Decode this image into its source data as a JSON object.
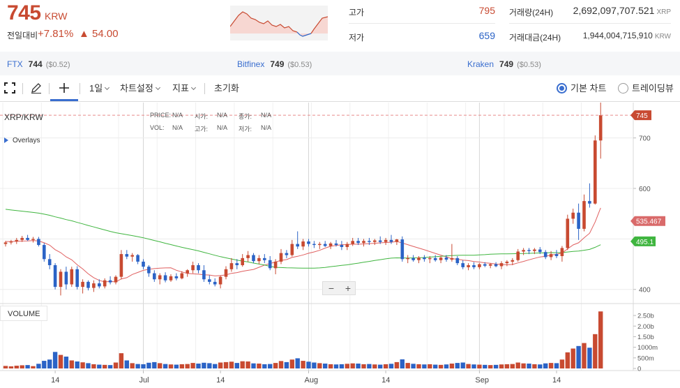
{
  "header": {
    "price": "745",
    "currency": "KRW",
    "change_label": "전일대비",
    "change_pct": "+7.81%",
    "change_abs": "▲ 54.00",
    "high_label": "고가",
    "high_value": "795",
    "low_label": "저가",
    "low_value": "659",
    "volume_label": "거래량(24H)",
    "volume_value": "2,692,097,707.521",
    "volume_unit": "XRP",
    "turnover_label": "거래대금(24H)",
    "turnover_value": "1,944,004,715,910",
    "turnover_unit": "KRW",
    "colors": {
      "up": "#c84a31",
      "down": "#2b63c6"
    }
  },
  "exchanges": [
    {
      "name": "FTX",
      "price": "744",
      "usd": "($0.52)"
    },
    {
      "name": "Bitfinex",
      "price": "749",
      "usd": "($0.53)"
    },
    {
      "name": "Kraken",
      "price": "749",
      "usd": "($0.53)"
    }
  ],
  "toolbar": {
    "fullscreen_icon": "fullscreen-icon",
    "draw_icon": "pencil-icon",
    "crosshair_icon": "crosshair-icon",
    "interval": "1일",
    "chart_settings": "차트설정",
    "indicators": "지표",
    "reset": "초기화",
    "basic_chart": "기본 차트",
    "trading_view": "트레이딩뷰"
  },
  "legend": {
    "symbol": "XRP/KRW",
    "overlays": "Overlays",
    "price_label": "PRICE:",
    "price_val": "N/A",
    "open_label": "시가:",
    "open_val": "N/A",
    "close_label": "종가:",
    "close_val": "N/A",
    "vol_label": "VOL:",
    "vol_val": "N/A",
    "high_label": "고가:",
    "high_val": "N/A",
    "low_label": "저가:",
    "low_val": "N/A",
    "volume_panel": "VOLUME",
    "zoom_out": "−",
    "zoom_in": "+"
  },
  "chart_data": {
    "type": "candlestick",
    "symbol": "XRP/KRW",
    "x_tick_labels": [
      "14",
      "Jul",
      "14",
      "Aug",
      "14",
      "Sep",
      "14"
    ],
    "x_tick_index": [
      9,
      25,
      39,
      55,
      69,
      86,
      100
    ],
    "y_ticks": [
      400,
      500,
      600,
      700
    ],
    "y_tick_labels": [
      "400",
      "500",
      "600",
      "700"
    ],
    "ylim": [
      372,
      770
    ],
    "last_price": 745,
    "last_price_label": "745",
    "ma_long_last": 495.1,
    "ma_long_label": "495.1",
    "ma_short_last": 535.467,
    "ma_short_label": "535.467",
    "volume_ticks": [
      0,
      500,
      1000,
      1500,
      2000,
      2500
    ],
    "volume_tick_labels": [
      "0",
      "500m",
      "1000m",
      "1.50b",
      "2.00b",
      "2.50b"
    ],
    "volume_unit": "millions",
    "colors": {
      "up": "#c84a31",
      "down": "#2b63c6",
      "ma_short": "#e06060",
      "ma_long": "#3fb53f"
    },
    "candles": [
      {
        "o": 490,
        "h": 496,
        "l": 485,
        "c": 493,
        "v": 120
      },
      {
        "o": 493,
        "h": 498,
        "l": 489,
        "c": 495,
        "v": 100
      },
      {
        "o": 495,
        "h": 502,
        "l": 490,
        "c": 498,
        "v": 130
      },
      {
        "o": 498,
        "h": 506,
        "l": 494,
        "c": 502,
        "v": 150
      },
      {
        "o": 502,
        "h": 508,
        "l": 496,
        "c": 498,
        "v": 160
      },
      {
        "o": 498,
        "h": 504,
        "l": 493,
        "c": 500,
        "v": 110
      },
      {
        "o": 500,
        "h": 504,
        "l": 485,
        "c": 488,
        "v": 220
      },
      {
        "o": 488,
        "h": 492,
        "l": 455,
        "c": 460,
        "v": 360
      },
      {
        "o": 460,
        "h": 470,
        "l": 440,
        "c": 448,
        "v": 420
      },
      {
        "o": 448,
        "h": 452,
        "l": 400,
        "c": 405,
        "v": 780
      },
      {
        "o": 405,
        "h": 440,
        "l": 388,
        "c": 435,
        "v": 640
      },
      {
        "o": 435,
        "h": 445,
        "l": 400,
        "c": 410,
        "v": 560
      },
      {
        "o": 410,
        "h": 445,
        "l": 405,
        "c": 440,
        "v": 380
      },
      {
        "o": 440,
        "h": 446,
        "l": 400,
        "c": 405,
        "v": 330
      },
      {
        "o": 405,
        "h": 420,
        "l": 392,
        "c": 415,
        "v": 290
      },
      {
        "o": 415,
        "h": 418,
        "l": 398,
        "c": 403,
        "v": 250
      },
      {
        "o": 403,
        "h": 418,
        "l": 395,
        "c": 412,
        "v": 200
      },
      {
        "o": 412,
        "h": 420,
        "l": 402,
        "c": 406,
        "v": 180
      },
      {
        "o": 406,
        "h": 422,
        "l": 402,
        "c": 418,
        "v": 170
      },
      {
        "o": 418,
        "h": 426,
        "l": 410,
        "c": 414,
        "v": 160
      },
      {
        "o": 414,
        "h": 428,
        "l": 410,
        "c": 425,
        "v": 280
      },
      {
        "o": 425,
        "h": 478,
        "l": 420,
        "c": 470,
        "v": 720
      },
      {
        "o": 470,
        "h": 478,
        "l": 460,
        "c": 465,
        "v": 380
      },
      {
        "o": 465,
        "h": 472,
        "l": 455,
        "c": 468,
        "v": 250
      },
      {
        "o": 468,
        "h": 470,
        "l": 450,
        "c": 455,
        "v": 210
      },
      {
        "o": 455,
        "h": 460,
        "l": 440,
        "c": 445,
        "v": 200
      },
      {
        "o": 445,
        "h": 448,
        "l": 425,
        "c": 432,
        "v": 270
      },
      {
        "o": 432,
        "h": 438,
        "l": 415,
        "c": 420,
        "v": 300
      },
      {
        "o": 420,
        "h": 432,
        "l": 410,
        "c": 428,
        "v": 250
      },
      {
        "o": 428,
        "h": 434,
        "l": 414,
        "c": 418,
        "v": 210
      },
      {
        "o": 418,
        "h": 430,
        "l": 415,
        "c": 426,
        "v": 190
      },
      {
        "o": 426,
        "h": 432,
        "l": 418,
        "c": 422,
        "v": 180
      },
      {
        "o": 422,
        "h": 436,
        "l": 420,
        "c": 432,
        "v": 200
      },
      {
        "o": 432,
        "h": 440,
        "l": 425,
        "c": 438,
        "v": 210
      },
      {
        "o": 438,
        "h": 455,
        "l": 432,
        "c": 448,
        "v": 260
      },
      {
        "o": 448,
        "h": 452,
        "l": 432,
        "c": 438,
        "v": 230
      },
      {
        "o": 438,
        "h": 448,
        "l": 415,
        "c": 420,
        "v": 270
      },
      {
        "o": 420,
        "h": 428,
        "l": 410,
        "c": 415,
        "v": 250
      },
      {
        "o": 415,
        "h": 422,
        "l": 406,
        "c": 410,
        "v": 210
      },
      {
        "o": 410,
        "h": 428,
        "l": 402,
        "c": 425,
        "v": 280
      },
      {
        "o": 425,
        "h": 446,
        "l": 420,
        "c": 440,
        "v": 300
      },
      {
        "o": 440,
        "h": 462,
        "l": 435,
        "c": 452,
        "v": 320
      },
      {
        "o": 452,
        "h": 460,
        "l": 440,
        "c": 448,
        "v": 260
      },
      {
        "o": 448,
        "h": 470,
        "l": 445,
        "c": 462,
        "v": 340
      },
      {
        "o": 462,
        "h": 476,
        "l": 455,
        "c": 468,
        "v": 330
      },
      {
        "o": 468,
        "h": 472,
        "l": 452,
        "c": 456,
        "v": 240
      },
      {
        "o": 456,
        "h": 468,
        "l": 450,
        "c": 462,
        "v": 230
      },
      {
        "o": 462,
        "h": 470,
        "l": 452,
        "c": 458,
        "v": 200
      },
      {
        "o": 458,
        "h": 466,
        "l": 438,
        "c": 442,
        "v": 210
      },
      {
        "o": 442,
        "h": 460,
        "l": 430,
        "c": 455,
        "v": 260
      },
      {
        "o": 455,
        "h": 480,
        "l": 450,
        "c": 472,
        "v": 350
      },
      {
        "o": 472,
        "h": 478,
        "l": 462,
        "c": 468,
        "v": 300
      },
      {
        "o": 468,
        "h": 498,
        "l": 465,
        "c": 490,
        "v": 420
      },
      {
        "o": 490,
        "h": 515,
        "l": 480,
        "c": 485,
        "v": 480
      },
      {
        "o": 485,
        "h": 500,
        "l": 478,
        "c": 495,
        "v": 360
      },
      {
        "o": 495,
        "h": 500,
        "l": 485,
        "c": 490,
        "v": 320
      },
      {
        "o": 490,
        "h": 496,
        "l": 482,
        "c": 488,
        "v": 280
      },
      {
        "o": 488,
        "h": 494,
        "l": 480,
        "c": 490,
        "v": 250
      },
      {
        "o": 490,
        "h": 496,
        "l": 484,
        "c": 486,
        "v": 230
      },
      {
        "o": 486,
        "h": 494,
        "l": 480,
        "c": 491,
        "v": 200
      },
      {
        "o": 491,
        "h": 498,
        "l": 485,
        "c": 488,
        "v": 190
      },
      {
        "o": 488,
        "h": 496,
        "l": 478,
        "c": 484,
        "v": 200
      },
      {
        "o": 484,
        "h": 494,
        "l": 478,
        "c": 490,
        "v": 220
      },
      {
        "o": 490,
        "h": 502,
        "l": 486,
        "c": 496,
        "v": 240
      },
      {
        "o": 496,
        "h": 502,
        "l": 488,
        "c": 492,
        "v": 230
      },
      {
        "o": 492,
        "h": 500,
        "l": 485,
        "c": 496,
        "v": 200
      },
      {
        "o": 496,
        "h": 502,
        "l": 488,
        "c": 494,
        "v": 210
      },
      {
        "o": 494,
        "h": 500,
        "l": 488,
        "c": 497,
        "v": 190
      },
      {
        "o": 497,
        "h": 505,
        "l": 490,
        "c": 494,
        "v": 180
      },
      {
        "o": 494,
        "h": 502,
        "l": 488,
        "c": 498,
        "v": 200
      },
      {
        "o": 498,
        "h": 508,
        "l": 490,
        "c": 494,
        "v": 220
      },
      {
        "o": 494,
        "h": 500,
        "l": 488,
        "c": 499,
        "v": 300
      },
      {
        "o": 499,
        "h": 505,
        "l": 455,
        "c": 460,
        "v": 430
      },
      {
        "o": 460,
        "h": 468,
        "l": 452,
        "c": 462,
        "v": 260
      },
      {
        "o": 462,
        "h": 468,
        "l": 455,
        "c": 458,
        "v": 220
      },
      {
        "o": 458,
        "h": 466,
        "l": 452,
        "c": 463,
        "v": 200
      },
      {
        "o": 463,
        "h": 468,
        "l": 455,
        "c": 460,
        "v": 190
      },
      {
        "o": 460,
        "h": 466,
        "l": 452,
        "c": 462,
        "v": 200
      },
      {
        "o": 462,
        "h": 468,
        "l": 455,
        "c": 458,
        "v": 180
      },
      {
        "o": 458,
        "h": 466,
        "l": 452,
        "c": 463,
        "v": 170
      },
      {
        "o": 463,
        "h": 468,
        "l": 455,
        "c": 459,
        "v": 190
      },
      {
        "o": 459,
        "h": 490,
        "l": 455,
        "c": 462,
        "v": 230
      },
      {
        "o": 462,
        "h": 466,
        "l": 448,
        "c": 452,
        "v": 260
      },
      {
        "o": 452,
        "h": 458,
        "l": 440,
        "c": 444,
        "v": 280
      },
      {
        "o": 444,
        "h": 452,
        "l": 438,
        "c": 448,
        "v": 210
      },
      {
        "o": 448,
        "h": 454,
        "l": 440,
        "c": 444,
        "v": 190
      },
      {
        "o": 444,
        "h": 452,
        "l": 440,
        "c": 450,
        "v": 180
      },
      {
        "o": 450,
        "h": 454,
        "l": 444,
        "c": 447,
        "v": 170
      },
      {
        "o": 447,
        "h": 452,
        "l": 442,
        "c": 450,
        "v": 160
      },
      {
        "o": 450,
        "h": 454,
        "l": 444,
        "c": 446,
        "v": 170
      },
      {
        "o": 446,
        "h": 456,
        "l": 440,
        "c": 452,
        "v": 190
      },
      {
        "o": 452,
        "h": 458,
        "l": 446,
        "c": 455,
        "v": 200
      },
      {
        "o": 455,
        "h": 462,
        "l": 448,
        "c": 458,
        "v": 210
      },
      {
        "o": 458,
        "h": 480,
        "l": 455,
        "c": 475,
        "v": 280
      },
      {
        "o": 475,
        "h": 482,
        "l": 468,
        "c": 478,
        "v": 240
      },
      {
        "o": 478,
        "h": 482,
        "l": 470,
        "c": 476,
        "v": 230
      },
      {
        "o": 476,
        "h": 482,
        "l": 470,
        "c": 479,
        "v": 200
      },
      {
        "o": 479,
        "h": 484,
        "l": 470,
        "c": 474,
        "v": 190
      },
      {
        "o": 474,
        "h": 478,
        "l": 460,
        "c": 464,
        "v": 240
      },
      {
        "o": 464,
        "h": 476,
        "l": 458,
        "c": 470,
        "v": 260
      },
      {
        "o": 470,
        "h": 478,
        "l": 462,
        "c": 466,
        "v": 250
      },
      {
        "o": 466,
        "h": 486,
        "l": 455,
        "c": 482,
        "v": 420
      },
      {
        "o": 482,
        "h": 548,
        "l": 478,
        "c": 540,
        "v": 760
      },
      {
        "o": 540,
        "h": 560,
        "l": 530,
        "c": 552,
        "v": 940
      },
      {
        "o": 552,
        "h": 570,
        "l": 498,
        "c": 520,
        "v": 1060
      },
      {
        "o": 520,
        "h": 588,
        "l": 515,
        "c": 575,
        "v": 1200
      },
      {
        "o": 575,
        "h": 610,
        "l": 562,
        "c": 570,
        "v": 980
      },
      {
        "o": 570,
        "h": 705,
        "l": 568,
        "c": 695,
        "v": 1620
      },
      {
        "o": 695,
        "h": 795,
        "l": 659,
        "c": 745,
        "v": 2692
      }
    ]
  }
}
